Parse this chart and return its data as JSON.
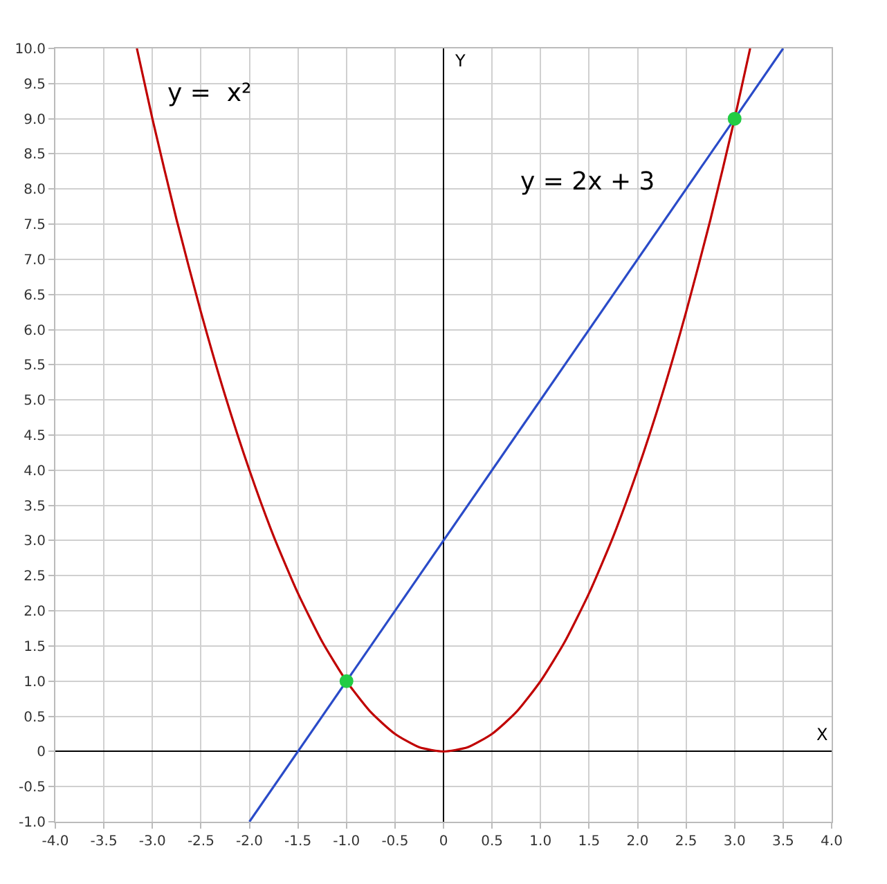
{
  "chart_data": {
    "type": "line",
    "xlabel": "X",
    "ylabel": "Y",
    "xlim": [
      -4,
      4
    ],
    "ylim": [
      -1,
      10
    ],
    "xticks": [
      {
        "value": -4,
        "label": "-4.0"
      },
      {
        "value": -3.5,
        "label": "-3.5"
      },
      {
        "value": -3,
        "label": "-3.0"
      },
      {
        "value": -2.5,
        "label": "-2.5"
      },
      {
        "value": -2,
        "label": "-2.0"
      },
      {
        "value": -1.5,
        "label": "-1.5"
      },
      {
        "value": -1,
        "label": "-1.0"
      },
      {
        "value": -0.5,
        "label": "-0.5"
      },
      0,
      {
        "value": 0.5,
        "label": "0.5"
      },
      {
        "value": 1,
        "label": "1.0"
      },
      {
        "value": 1.5,
        "label": "1.5"
      },
      {
        "value": 2,
        "label": "2.0"
      },
      {
        "value": 2.5,
        "label": "2.5"
      },
      {
        "value": 3,
        "label": "3.0"
      },
      {
        "value": 3.5,
        "label": "3.5"
      },
      {
        "value": 4,
        "label": "4.0"
      }
    ],
    "yticks": [
      {
        "value": -1,
        "label": "-1.0"
      },
      {
        "value": -0.5,
        "label": "-0.5"
      },
      0,
      {
        "value": 0.5,
        "label": "0.5"
      },
      {
        "value": 1,
        "label": "1.0"
      },
      {
        "value": 1.5,
        "label": "1.5"
      },
      {
        "value": 2,
        "label": "2.0"
      },
      {
        "value": 2.5,
        "label": "2.5"
      },
      {
        "value": 3,
        "label": "3.0"
      },
      {
        "value": 3.5,
        "label": "3.5"
      },
      {
        "value": 4,
        "label": "4.0"
      },
      {
        "value": 4.5,
        "label": "4.5"
      },
      {
        "value": 5,
        "label": "5.0"
      },
      {
        "value": 5.5,
        "label": "5.5"
      },
      {
        "value": 6,
        "label": "6.0"
      },
      {
        "value": 6.5,
        "label": "6.5"
      },
      {
        "value": 7,
        "label": "7.0"
      },
      {
        "value": 7.5,
        "label": "7.5"
      },
      {
        "value": 8,
        "label": "8.0"
      },
      {
        "value": 8.5,
        "label": "8.5"
      },
      {
        "value": 9,
        "label": "9.0"
      },
      {
        "value": 9.5,
        "label": "9.5"
      },
      {
        "value": 10,
        "label": "10.0"
      }
    ],
    "grid": true,
    "marker": "none",
    "line_style": "solid",
    "series": [
      {
        "color": "#c00000",
        "x": [
          -3.16,
          -3,
          -2.75,
          -2.5,
          -2.25,
          -2,
          -1.75,
          -1.5,
          -1.25,
          -1,
          -0.75,
          -0.5,
          -0.25,
          0,
          0.25,
          0.5,
          0.75,
          1,
          1.25,
          1.5,
          1.75,
          2,
          2.25,
          2.5,
          2.75,
          3,
          3.16
        ],
        "values": [
          10,
          9,
          7.56,
          6.25,
          5.06,
          4,
          3.06,
          2.25,
          1.56,
          1,
          0.56,
          0.25,
          0.06,
          0,
          0.06,
          0.25,
          0.56,
          1,
          1.56,
          2.25,
          3.06,
          4,
          5.06,
          6.25,
          7.56,
          9,
          10
        ]
      },
      {
        "color": "#2a4bc8",
        "x": [
          -2,
          3.5
        ],
        "values": [
          -1,
          10
        ]
      },
      {
        "type": "scatter",
        "color": "#22cc44",
        "marker": "circle",
        "x": [
          -1,
          3
        ],
        "values": [
          1,
          9
        ]
      }
    ],
    "annotations": [
      "y =  x²",
      "y = 2x + 3"
    ]
  }
}
